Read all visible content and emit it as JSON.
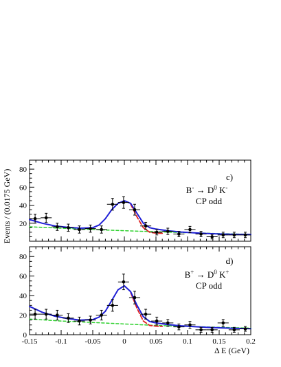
{
  "chart_data": [
    {
      "type": "scatter",
      "panel_label": "c)",
      "process": {
        "lhs": "B",
        "lhs_charge": "-",
        "arrow": "→",
        "d": "D",
        "d_sup": "0",
        "k": "K",
        "k_charge": "-"
      },
      "category": "CP odd",
      "ylabel": "Events / (0.0175 GeV)",
      "xlim": [
        -0.15,
        0.2
      ],
      "ylim": [
        0,
        90
      ],
      "yticks": [
        "20",
        "40",
        "60",
        "80"
      ],
      "grid": false,
      "series": [
        {
          "role": "data",
          "color": "#000000",
          "x": [
            -0.1412,
            -0.1237,
            -0.1062,
            -0.0887,
            -0.0712,
            -0.0537,
            -0.0362,
            -0.0187,
            -0.0012,
            0.0163,
            0.0338,
            0.0513,
            0.0688,
            0.0863,
            0.1038,
            0.1213,
            0.1388,
            0.1563,
            0.1738,
            0.1913
          ],
          "y": [
            25,
            26,
            16,
            15,
            13,
            14,
            13,
            41,
            43,
            35,
            17,
            10,
            11,
            8,
            13,
            8,
            5,
            7,
            7,
            7
          ],
          "yerr": [
            5,
            5,
            4,
            4,
            4,
            4,
            4,
            6.5,
            6.5,
            6,
            4,
            3,
            3.5,
            3,
            3.5,
            3,
            2.5,
            3,
            3,
            3
          ]
        },
        {
          "role": "total-fit",
          "color": "#1f1fd6",
          "x": [
            -0.15,
            -0.13,
            -0.11,
            -0.09,
            -0.07,
            -0.05,
            -0.04,
            -0.03,
            -0.02,
            -0.01,
            0,
            0.01,
            0.02,
            0.03,
            0.04,
            0.05,
            0.07,
            0.09,
            0.11,
            0.13,
            0.15,
            0.17,
            0.2
          ],
          "y": [
            24,
            20,
            17,
            15.5,
            14.5,
            15,
            18,
            25,
            35,
            42,
            45,
            42,
            31,
            20,
            15,
            13.5,
            11.5,
            10.2,
            9.3,
            8.6,
            8.1,
            7.7,
            7.4
          ]
        },
        {
          "role": "partial-fit",
          "color": "#e02020",
          "x": [
            0.01,
            0.02,
            0.03,
            0.04,
            0.05,
            0.06
          ],
          "y": [
            41,
            27,
            15,
            10,
            9,
            8.8
          ]
        },
        {
          "role": "background",
          "color": "#2fd12f",
          "x": [
            -0.15,
            -0.1,
            -0.05,
            0,
            0.05,
            0.1,
            0.15,
            0.2
          ],
          "y": [
            16,
            14.5,
            13,
            11.7,
            10.5,
            9.5,
            8.5,
            7.6
          ]
        }
      ]
    },
    {
      "type": "scatter",
      "panel_label": "d)",
      "process": {
        "lhs": "B",
        "lhs_charge": "+",
        "arrow": "→",
        "d": "D",
        "d_sup": "0",
        "k": "K",
        "k_charge": "+"
      },
      "category": "CP odd",
      "xlabel": "Δ E (GeV)",
      "xlim": [
        -0.15,
        0.2
      ],
      "ylim": [
        0,
        90
      ],
      "yticks": [
        "0",
        "20",
        "40",
        "60",
        "80"
      ],
      "xticks": [
        "-0.15",
        "-0.1",
        "-0.05",
        "0",
        "0.05",
        "0.1",
        "0.15",
        "0.2"
      ],
      "grid": false,
      "series": [
        {
          "role": "data",
          "color": "#000000",
          "x": [
            -0.1412,
            -0.1237,
            -0.1062,
            -0.0887,
            -0.0712,
            -0.0537,
            -0.0362,
            -0.0187,
            -0.0012,
            0.0163,
            0.0338,
            0.0513,
            0.0688,
            0.0863,
            0.1038,
            0.1213,
            0.1388,
            0.1563,
            0.1738,
            0.1913
          ],
          "y": [
            21,
            21,
            20,
            17,
            14,
            15,
            20,
            30,
            54,
            38,
            21,
            14,
            12,
            8,
            10,
            5,
            5,
            12,
            5,
            6
          ],
          "yerr": [
            5,
            5,
            5,
            4.5,
            4,
            4,
            5,
            6,
            8,
            6.5,
            5,
            4,
            3.5,
            3,
            3.5,
            2.5,
            2.5,
            3.5,
            2.5,
            2.5
          ]
        },
        {
          "role": "total-fit",
          "color": "#1f1fd6",
          "x": [
            -0.15,
            -0.13,
            -0.11,
            -0.09,
            -0.07,
            -0.05,
            -0.04,
            -0.03,
            -0.02,
            -0.01,
            0,
            0.01,
            0.02,
            0.03,
            0.04,
            0.05,
            0.07,
            0.09,
            0.11,
            0.13,
            0.15,
            0.17,
            0.2
          ],
          "y": [
            29,
            23,
            19,
            16.5,
            15,
            15.5,
            18,
            24,
            35,
            46,
            50,
            44,
            30,
            18.5,
            13.5,
            12,
            10.3,
            9.1,
            8.2,
            7.5,
            7,
            6.6,
            6.2
          ]
        },
        {
          "role": "partial-fit",
          "color": "#e02020",
          "x": [
            0.01,
            0.02,
            0.03,
            0.04,
            0.05,
            0.06
          ],
          "y": [
            43,
            27,
            14,
            9.5,
            8.7,
            8.5
          ]
        },
        {
          "role": "background",
          "color": "#2fd12f",
          "x": [
            -0.15,
            -0.1,
            -0.05,
            0,
            0.05,
            0.1,
            0.15,
            0.2
          ],
          "y": [
            16,
            14,
            12.5,
            11,
            9.5,
            8.5,
            7.5,
            6.7
          ]
        }
      ]
    }
  ]
}
